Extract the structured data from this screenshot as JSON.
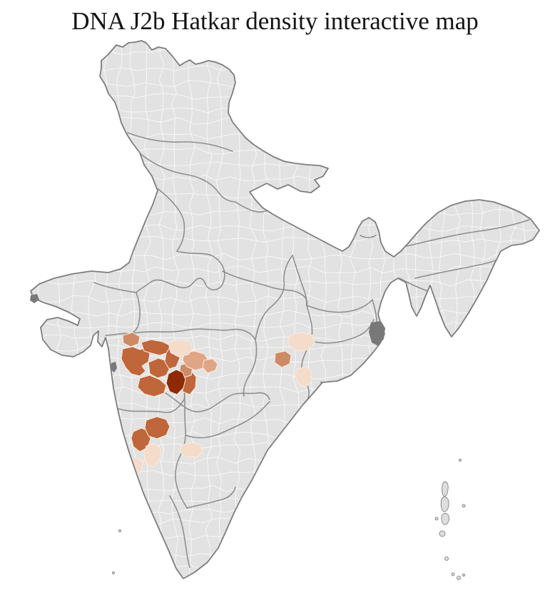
{
  "title": "DNA J2b Hatkar density interactive map",
  "map": {
    "label": "India district-level density choropleth",
    "background": "#ffffff",
    "land_fill": "#e2e2e2",
    "district_border_color": "#f8f8f8",
    "state_border_color": "#8a8a8a",
    "coast_border_color": "#7d7d7d",
    "dense_delta_color": "#787878",
    "island_fill": "#dedede",
    "palette": {
      "l1": "#f4dbca",
      "l2": "#dfa584",
      "l3": "#cd8a64",
      "l4": "#bf663a",
      "l5": "#8e2a05"
    },
    "density_levels": [
      {
        "level": 5,
        "name": "highest",
        "color": "#8e2a05"
      },
      {
        "level": 4,
        "name": "high",
        "color": "#bf663a"
      },
      {
        "level": 3,
        "name": "medium",
        "color": "#cd8a64"
      },
      {
        "level": 2,
        "name": "low",
        "color": "#dfa584"
      },
      {
        "level": 1,
        "name": "lowest",
        "color": "#f4dbca"
      }
    ],
    "highlighted_districts": [
      {
        "id": "d1",
        "level": 5
      },
      {
        "id": "d2",
        "level": 4
      },
      {
        "id": "d3",
        "level": 4
      },
      {
        "id": "d4",
        "level": 4
      },
      {
        "id": "d5",
        "level": 4
      },
      {
        "id": "d6",
        "level": 4
      },
      {
        "id": "d7",
        "level": 4
      },
      {
        "id": "d8",
        "level": 4
      },
      {
        "id": "d9",
        "level": 4
      },
      {
        "id": "d10",
        "level": 3
      },
      {
        "id": "d11",
        "level": 3
      },
      {
        "id": "d12",
        "level": 3
      },
      {
        "id": "d13",
        "level": 2
      },
      {
        "id": "d14",
        "level": 2
      },
      {
        "id": "d15",
        "level": 1
      },
      {
        "id": "d16",
        "level": 1
      },
      {
        "id": "d17",
        "level": 1
      },
      {
        "id": "d18",
        "level": 1
      },
      {
        "id": "d19",
        "level": 1
      },
      {
        "id": "d20",
        "level": 1
      }
    ]
  }
}
